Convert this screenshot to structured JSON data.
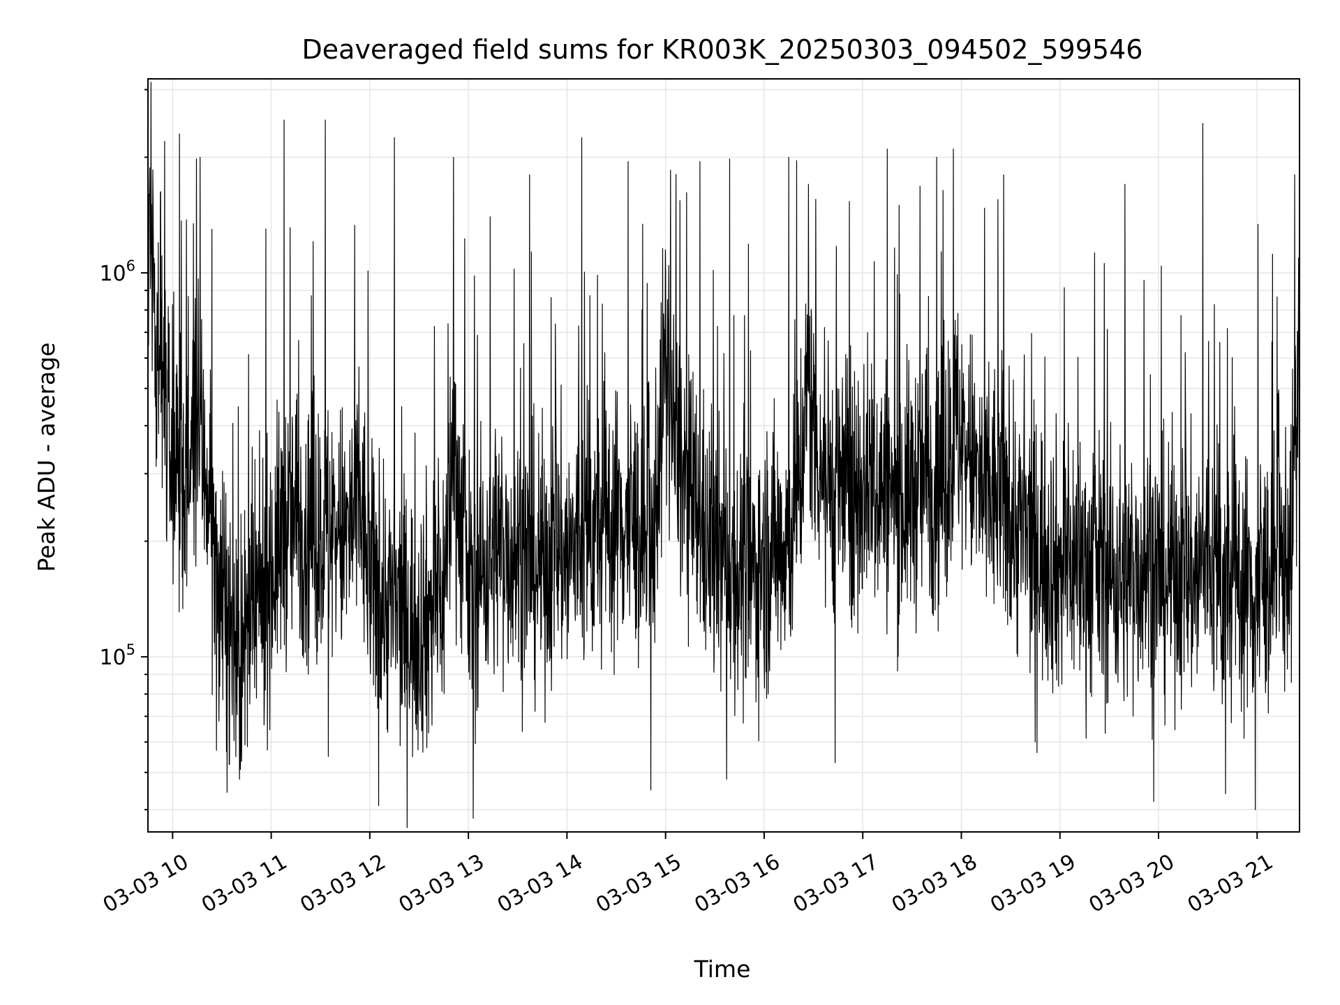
{
  "chart_data": {
    "type": "line",
    "title": "Deaveraged field sums for KR003K_20250303_094502_599546",
    "xlabel": "Time",
    "ylabel": "Peak ADU - average",
    "x_axis": {
      "kind": "time",
      "range_hours": [
        9.75,
        21.43
      ],
      "ticks": [
        {
          "hour": 10,
          "label": "03-03 10"
        },
        {
          "hour": 11,
          "label": "03-03 11"
        },
        {
          "hour": 12,
          "label": "03-03 12"
        },
        {
          "hour": 13,
          "label": "03-03 13"
        },
        {
          "hour": 14,
          "label": "03-03 14"
        },
        {
          "hour": 15,
          "label": "03-03 15"
        },
        {
          "hour": 16,
          "label": "03-03 16"
        },
        {
          "hour": 17,
          "label": "03-03 17"
        },
        {
          "hour": 18,
          "label": "03-03 18"
        },
        {
          "hour": 19,
          "label": "03-03 19"
        },
        {
          "hour": 20,
          "label": "03-03 20"
        },
        {
          "hour": 21,
          "label": "03-03 21"
        }
      ],
      "tick_label_rotation_deg": 30
    },
    "y_axis": {
      "scale": "log",
      "ylim": [
        35000,
        3200000
      ],
      "major_ticks": [
        {
          "value": 100000,
          "base": "10",
          "exp": "5"
        },
        {
          "value": 1000000,
          "base": "10",
          "exp": "6"
        }
      ]
    },
    "grid": true,
    "legend": "none",
    "series": [
      {
        "color": "#000000",
        "x_hours": [
          9.75,
          9.85,
          10.0,
          10.1,
          10.25,
          10.35,
          10.45,
          10.55,
          10.7,
          10.85,
          11.0,
          11.15,
          11.3,
          11.45,
          11.6,
          11.75,
          11.9,
          12.0,
          12.15,
          12.3,
          12.45,
          12.6,
          12.75,
          12.85,
          13.0,
          13.15,
          13.3,
          13.45,
          13.6,
          13.75,
          13.9,
          14.0,
          14.15,
          14.3,
          14.5,
          14.7,
          14.85,
          15.0,
          15.1,
          15.25,
          15.4,
          15.55,
          15.7,
          15.85,
          16.0,
          16.15,
          16.3,
          16.45,
          16.6,
          16.75,
          16.9,
          17.05,
          17.2,
          17.35,
          17.5,
          17.65,
          17.8,
          17.95,
          18.1,
          18.25,
          18.4,
          18.55,
          18.7,
          18.85,
          19.0,
          19.15,
          19.3,
          19.45,
          19.6,
          19.75,
          19.9,
          20.05,
          20.2,
          20.35,
          20.5,
          20.65,
          20.8,
          20.95,
          21.1,
          21.25,
          21.35,
          21.43
        ],
        "mid_values": [
          1500000,
          700000,
          300000,
          250000,
          400000,
          300000,
          150000,
          120000,
          100000,
          130000,
          170000,
          220000,
          230000,
          210000,
          220000,
          200000,
          250000,
          160000,
          140000,
          130000,
          120000,
          130000,
          150000,
          350000,
          150000,
          170000,
          200000,
          190000,
          180000,
          170000,
          200000,
          180000,
          200000,
          210000,
          230000,
          220000,
          170000,
          600000,
          350000,
          250000,
          200000,
          180000,
          170000,
          160000,
          180000,
          200000,
          220000,
          500000,
          300000,
          280000,
          260000,
          300000,
          280000,
          250000,
          270000,
          300000,
          280000,
          400000,
          320000,
          250000,
          270000,
          220000,
          200000,
          190000,
          170000,
          180000,
          170000,
          170000,
          160000,
          170000,
          180000,
          160000,
          170000,
          160000,
          180000,
          150000,
          160000,
          150000,
          160000,
          170000,
          200000,
          600000
        ],
        "extremes": [
          {
            "x": 9.78,
            "y": 3200000
          },
          {
            "x": 9.92,
            "y": 2200000
          },
          {
            "x": 10.07,
            "y": 2300000
          },
          {
            "x": 10.28,
            "y": 2000000
          },
          {
            "x": 10.55,
            "y": 190000
          },
          {
            "x": 10.68,
            "y": 48000
          },
          {
            "x": 11.13,
            "y": 2500000
          },
          {
            "x": 11.55,
            "y": 2500000
          },
          {
            "x": 11.58,
            "y": 55000
          },
          {
            "x": 12.09,
            "y": 41000
          },
          {
            "x": 12.25,
            "y": 2250000
          },
          {
            "x": 12.58,
            "y": 58000
          },
          {
            "x": 12.85,
            "y": 2000000
          },
          {
            "x": 13.05,
            "y": 38000
          },
          {
            "x": 13.22,
            "y": 1400000
          },
          {
            "x": 13.62,
            "y": 1800000
          },
          {
            "x": 14.15,
            "y": 2250000
          },
          {
            "x": 14.85,
            "y": 45000
          },
          {
            "x": 15.05,
            "y": 1850000
          },
          {
            "x": 15.35,
            "y": 1950000
          },
          {
            "x": 15.62,
            "y": 48000
          },
          {
            "x": 16.25,
            "y": 2000000
          },
          {
            "x": 16.45,
            "y": 1700000
          },
          {
            "x": 16.72,
            "y": 53000
          },
          {
            "x": 17.25,
            "y": 2100000
          },
          {
            "x": 17.75,
            "y": 2000000
          },
          {
            "x": 17.92,
            "y": 2100000
          },
          {
            "x": 18.43,
            "y": 1800000
          },
          {
            "x": 18.75,
            "y": 60000
          },
          {
            "x": 19.66,
            "y": 1700000
          },
          {
            "x": 19.95,
            "y": 42000
          },
          {
            "x": 20.45,
            "y": 2450000
          },
          {
            "x": 20.68,
            "y": 44000
          },
          {
            "x": 20.98,
            "y": 40000
          },
          {
            "x": 21.38,
            "y": 1800000
          }
        ]
      }
    ]
  }
}
